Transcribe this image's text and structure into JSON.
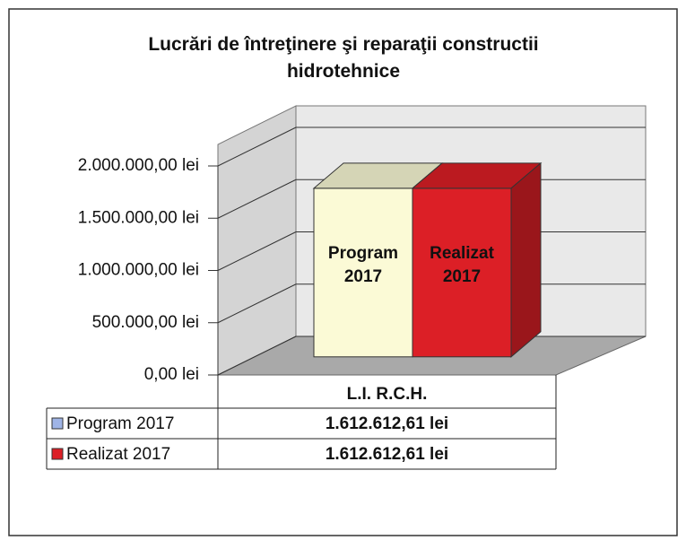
{
  "chart_data": {
    "type": "bar3d",
    "title": "Lucrări de întreţinere şi reparaţii constructii hidrotehnice",
    "categories": [
      "L.I. R.C.H."
    ],
    "series": [
      {
        "name": "Program 2017",
        "color": "#fbfad6",
        "legend_color": "#9fb4e6",
        "values": [
          1612612.61
        ],
        "value_labels": [
          "1.612.612,61 lei"
        ]
      },
      {
        "name": "Realizat 2017",
        "color": "#dc1f26",
        "legend_color": "#dc1f26",
        "values": [
          1612612.61
        ],
        "value_labels": [
          "1.612.612,61 lei"
        ]
      }
    ],
    "ylim": [
      0,
      2000000
    ],
    "yticks": [
      {
        "value": 0,
        "label": "0,00 lei"
      },
      {
        "value": 500000,
        "label": "500.000,00 lei"
      },
      {
        "value": 1000000,
        "label": "1.000.000,00 lei"
      },
      {
        "value": 1500000,
        "label": "1.500.000,00 lei"
      },
      {
        "value": 2000000,
        "label": "2.000.000,00 lei"
      }
    ],
    "grid": true
  }
}
